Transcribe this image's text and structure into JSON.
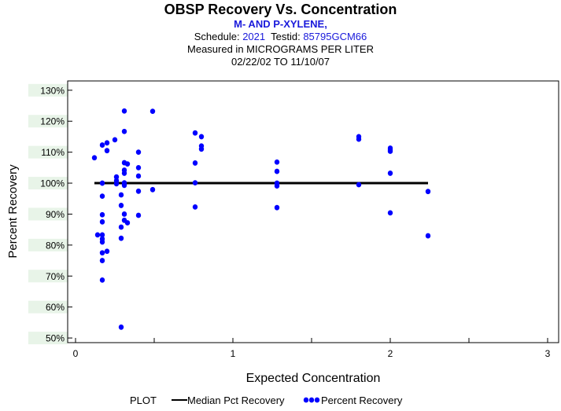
{
  "header": {
    "title": "OBSP Recovery Vs. Concentration",
    "analyte": "M- AND P-XYLENE,",
    "schedule_label": "Schedule:",
    "schedule_value": "2021",
    "testid_label": "Testid:",
    "testid_value": "85795GCM66",
    "measured": "Measured in  MICROGRAMS PER LITER",
    "dates": "02/22/02 TO 11/10/07"
  },
  "colors": {
    "points": "#0000ff",
    "median_line": "#000000",
    "band": "#e8f4e8"
  },
  "chart_data": {
    "type": "scatter",
    "xlabel": "Expected Concentration",
    "ylabel": "Percent Recovery",
    "xlim": [
      -0.05,
      3.07
    ],
    "ylim": [
      48.5,
      133
    ],
    "x_ticks": [
      0,
      1,
      2,
      3
    ],
    "x_minor_ticks": [
      0.5,
      1.5,
      2.5
    ],
    "x_tick_labels": [
      "0",
      "1",
      "2",
      "3"
    ],
    "y_ticks": [
      50,
      60,
      70,
      80,
      90,
      100,
      110,
      120,
      130
    ],
    "y_tick_labels": [
      "50%",
      "60%",
      "70%",
      "80%",
      "90%",
      "100%",
      "110%",
      "120%",
      "130%"
    ],
    "legend": {
      "title": "PLOT",
      "items": [
        {
          "label": "Median Pct Recovery",
          "kind": "line"
        },
        {
          "label": "Percent Recovery",
          "kind": "points"
        }
      ]
    },
    "series": [
      {
        "name": "Median Pct Recovery",
        "kind": "line",
        "x": [
          0.12,
          2.24
        ],
        "y": [
          100,
          100
        ]
      },
      {
        "name": "Percent Recovery",
        "kind": "scatter",
        "points": [
          [
            0.12,
            108.2
          ],
          [
            0.14,
            83.3
          ],
          [
            0.17,
            112.3
          ],
          [
            0.17,
            100.0
          ],
          [
            0.17,
            95.8
          ],
          [
            0.17,
            89.8
          ],
          [
            0.17,
            87.5
          ],
          [
            0.17,
            83.3
          ],
          [
            0.17,
            82.0
          ],
          [
            0.17,
            81.0
          ],
          [
            0.17,
            77.5
          ],
          [
            0.17,
            75.0
          ],
          [
            0.17,
            68.7
          ],
          [
            0.2,
            113.0
          ],
          [
            0.2,
            110.5
          ],
          [
            0.2,
            78.0
          ],
          [
            0.25,
            114.0
          ],
          [
            0.26,
            102.0
          ],
          [
            0.26,
            100.8
          ],
          [
            0.26,
            99.8
          ],
          [
            0.29,
            96.2
          ],
          [
            0.29,
            92.8
          ],
          [
            0.29,
            85.8
          ],
          [
            0.29,
            82.2
          ],
          [
            0.29,
            53.5
          ],
          [
            0.31,
            123.3
          ],
          [
            0.31,
            116.7
          ],
          [
            0.31,
            106.6
          ],
          [
            0.31,
            104.2
          ],
          [
            0.31,
            103.2
          ],
          [
            0.31,
            100.1
          ],
          [
            0.31,
            99.3
          ],
          [
            0.31,
            90.0
          ],
          [
            0.31,
            88.0
          ],
          [
            0.33,
            106.2
          ],
          [
            0.33,
            87.2
          ],
          [
            0.4,
            110.0
          ],
          [
            0.4,
            105.0
          ],
          [
            0.4,
            102.3
          ],
          [
            0.4,
            97.4
          ],
          [
            0.4,
            89.6
          ],
          [
            0.49,
            123.2
          ],
          [
            0.49,
            97.9
          ],
          [
            0.76,
            116.2
          ],
          [
            0.76,
            106.5
          ],
          [
            0.76,
            100.1
          ],
          [
            0.76,
            92.3
          ],
          [
            0.8,
            115.0
          ],
          [
            0.8,
            112.0
          ],
          [
            0.8,
            111.0
          ],
          [
            1.28,
            106.8
          ],
          [
            1.28,
            103.8
          ],
          [
            1.28,
            100.0
          ],
          [
            1.28,
            99.1
          ],
          [
            1.28,
            92.1
          ],
          [
            1.8,
            115.0
          ],
          [
            1.8,
            114.2
          ],
          [
            1.8,
            99.5
          ],
          [
            2.0,
            111.3
          ],
          [
            2.0,
            110.7
          ],
          [
            2.0,
            110.3
          ],
          [
            2.0,
            103.2
          ],
          [
            2.0,
            90.4
          ],
          [
            2.24,
            97.3
          ],
          [
            2.24,
            83.0
          ]
        ]
      }
    ]
  }
}
